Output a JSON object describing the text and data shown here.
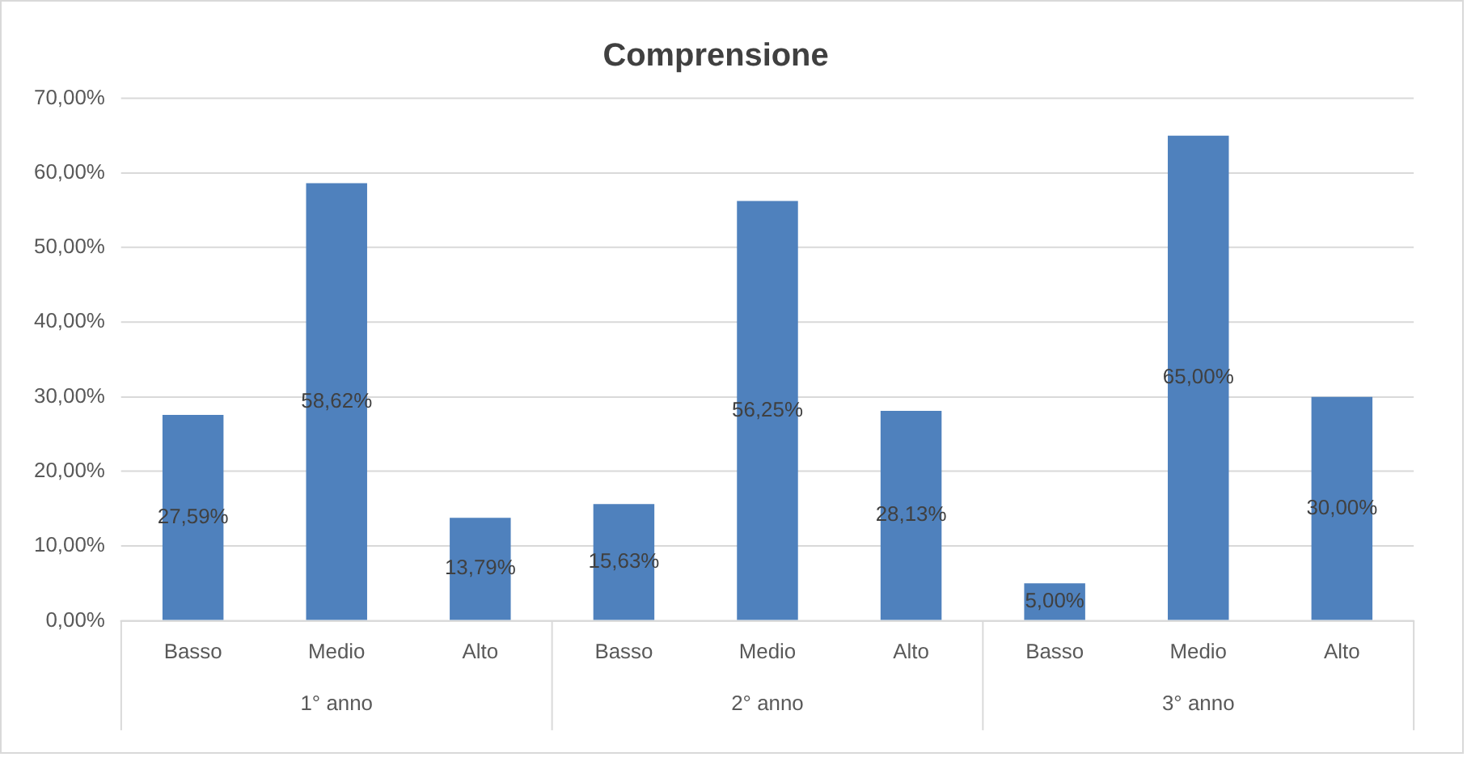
{
  "chart_data": {
    "type": "bar",
    "title": "Comprensione",
    "categories": [
      "Basso",
      "Medio",
      "Alto",
      "Basso",
      "Medio",
      "Alto",
      "Basso",
      "Medio",
      "Alto"
    ],
    "values": [
      27.59,
      58.62,
      13.79,
      15.63,
      56.25,
      28.13,
      5.0,
      65.0,
      30.0
    ],
    "value_labels": [
      "27,59%",
      "58,62%",
      "13,79%",
      "15,63%",
      "56,25%",
      "28,13%",
      "5,00%",
      "65,00%",
      "30,00%"
    ],
    "color": "#4f81bd",
    "ylim": [
      0,
      70
    ],
    "yticks": [
      {
        "value": 0,
        "label": "0,00%"
      },
      {
        "value": 10,
        "label": "10,00%"
      },
      {
        "value": 20,
        "label": "20,00%"
      },
      {
        "value": 30,
        "label": "30,00%"
      },
      {
        "value": 40,
        "label": "40,00%"
      },
      {
        "value": 50,
        "label": "50,00%"
      },
      {
        "value": 60,
        "label": "60,00%"
      },
      {
        "value": 70,
        "label": "70,00%"
      }
    ],
    "annotations": [
      "1° anno",
      "2° anno",
      "3° anno"
    ],
    "grid": "y",
    "legend": false
  }
}
